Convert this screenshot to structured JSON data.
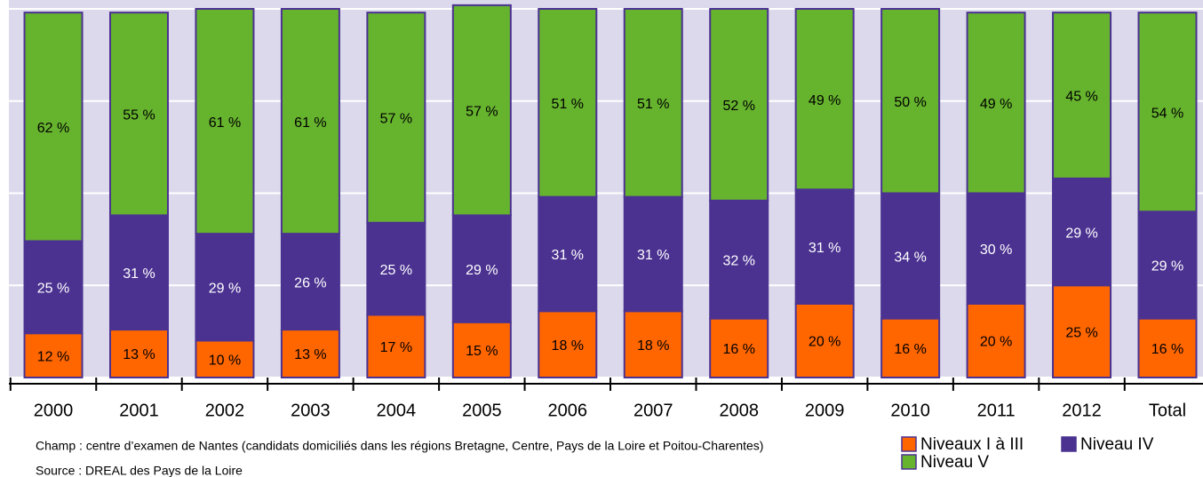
{
  "chart_data": {
    "type": "stacked_bar",
    "categories": [
      "2000",
      "2001",
      "2002",
      "2003",
      "2004",
      "2005",
      "2006",
      "2007",
      "2008",
      "2009",
      "2010",
      "2011",
      "2012",
      "Total"
    ],
    "series": [
      {
        "name": "Niveaux I à III",
        "color": "#ff6600",
        "values": [
          12,
          13,
          10,
          13,
          17,
          15,
          18,
          18,
          16,
          20,
          16,
          20,
          25,
          16
        ],
        "value_labels": [
          "12 %",
          "13 %",
          "10 %",
          "13 %",
          "17 %",
          "15 %",
          "18 %",
          "18 %",
          "16 %",
          "20 %",
          "16 %",
          "20 %",
          "25 %",
          "16 %"
        ]
      },
      {
        "name": "Niveau IV",
        "color": "#4b3291",
        "values": [
          25,
          31,
          29,
          26,
          25,
          29,
          31,
          31,
          32,
          31,
          34,
          30,
          29,
          29
        ],
        "value_labels": [
          "25 %",
          "31 %",
          "29 %",
          "26 %",
          "25 %",
          "29 %",
          "31 %",
          "31 %",
          "32 %",
          "31 %",
          "34 %",
          "30 %",
          "29 %",
          "29 %"
        ]
      },
      {
        "name": "Niveau V",
        "color": "#66b32e",
        "values": [
          62,
          55,
          61,
          61,
          57,
          57,
          51,
          51,
          52,
          49,
          50,
          49,
          45,
          54
        ],
        "value_labels": [
          "62 %",
          "55 %",
          "61 %",
          "61 %",
          "57 %",
          "57 %",
          "51 %",
          "51 %",
          "52 %",
          "49 %",
          "50 %",
          "49 %",
          "45 %",
          "54 %"
        ]
      }
    ],
    "ylim": [
      0,
      100
    ],
    "yticks": [
      0,
      25,
      50,
      75,
      100
    ],
    "grid": true,
    "notes": [
      "Champ : centre d’examen de Nantes (candidats domiciliés dans les régions Bretagne, Centre, Pays de la Loire et Poitou-Charentes)",
      "Source : DREAL des Pays de la Loire"
    ],
    "legend": "bottom-right"
  }
}
